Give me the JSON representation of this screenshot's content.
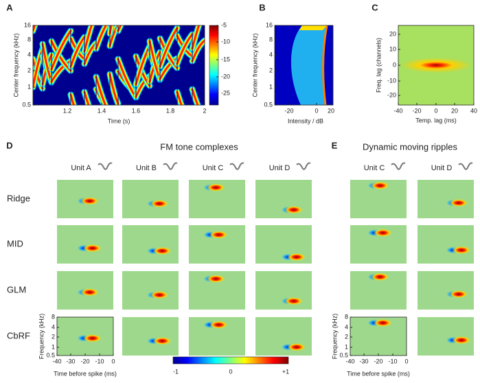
{
  "panels": {
    "A": {
      "label": "A",
      "ylabel": "Center frequency (kHz)",
      "xlabel": "Time (s)",
      "yticks": [
        "16",
        "8",
        "4",
        "2",
        "1",
        "0.5"
      ],
      "xticks": [
        "1.2",
        "1.4",
        "1.6",
        "1.8",
        "2"
      ],
      "colorbar_ticks": [
        "-5",
        "-10",
        "-15",
        "-20",
        "-25"
      ]
    },
    "B": {
      "label": "B",
      "ylabel": "Center frequency (kHz)",
      "xlabel": "Intensity / dB",
      "yticks": [
        "16",
        "8",
        "4",
        "2",
        "1",
        "0.5"
      ],
      "xticks": [
        "-20",
        "0",
        "20"
      ]
    },
    "C": {
      "label": "C",
      "ylabel": "Freq. lag (channels)",
      "xlabel": "Temp. lag (ms)",
      "yticks": [
        "20",
        "10",
        "0",
        "-10",
        "-20"
      ],
      "xticks": [
        "-40",
        "-20",
        "0",
        "20",
        "40"
      ]
    },
    "D": {
      "label": "D",
      "title": "FM tone complexes",
      "units": [
        "Unit A",
        "Unit B",
        "Unit C",
        "Unit D"
      ]
    },
    "E": {
      "label": "E",
      "title": "Dynamic moving ripples",
      "units": [
        "Unit C",
        "Unit D"
      ]
    }
  },
  "rows": [
    "Ridge",
    "MID",
    "GLM",
    "CbRF"
  ],
  "rf_axes": {
    "ylabel": "Frequency (kHz)",
    "yticks": [
      "8",
      "4",
      "2",
      "1",
      "0.5"
    ],
    "xlabel": "Time before spike (ms)",
    "xticks": [
      "-40",
      "-30",
      "-20",
      "-10",
      "0"
    ]
  },
  "colorbar": {
    "ticks": [
      "-1",
      "0",
      "+1"
    ]
  }
}
